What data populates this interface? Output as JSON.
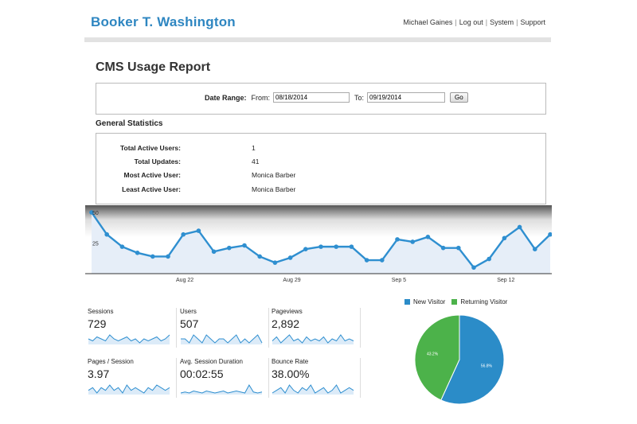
{
  "header": {
    "site_title": "Booker T. Washington",
    "links": [
      "Michael Gaines",
      "Log out",
      "System",
      "Support"
    ]
  },
  "page": {
    "title": "CMS Usage Report"
  },
  "date_range": {
    "label": "Date Range:",
    "from_label": "From:",
    "from_value": "08/18/2014",
    "to_label": "To:",
    "to_value": "09/19/2014",
    "go_label": "Go"
  },
  "general": {
    "title": "General Statistics",
    "rows": [
      {
        "label": "Total Active Users:",
        "value": "1"
      },
      {
        "label": "Total Updates:",
        "value": "41"
      },
      {
        "label": "Most Active User:",
        "value": "Monica Barber"
      },
      {
        "label": "Least Active User:",
        "value": "Monica Barber"
      }
    ]
  },
  "chart_data": [
    {
      "type": "area",
      "series_color": "#2f8fd0",
      "y_ticks": [
        "50",
        "25"
      ],
      "ylim": [
        0,
        50
      ],
      "x_ticks": [
        "Aug 22",
        "Aug 29",
        "Sep 5",
        "Sep 12"
      ],
      "values": [
        50,
        32,
        22,
        17,
        14,
        14,
        32,
        35,
        18,
        21,
        23,
        14,
        9,
        13,
        20,
        22,
        22,
        22,
        11,
        11,
        28,
        26,
        30,
        21,
        21,
        5,
        12,
        29,
        38,
        20,
        32
      ]
    },
    {
      "type": "pie",
      "legend": [
        {
          "label": "New Visitor",
          "color": "#2b8cc8"
        },
        {
          "label": "Returning Visitor",
          "color": "#4cb24a"
        }
      ],
      "slices": [
        {
          "label": "New Visitor",
          "value": 56.8,
          "text": "56.8%",
          "color": "#2b8cc8"
        },
        {
          "label": "Returning Visitor",
          "value": 43.2,
          "text": "43.2%",
          "color": "#4cb24a"
        }
      ]
    }
  ],
  "metrics": [
    {
      "label": "Sessions",
      "value": "729",
      "spark": [
        6,
        5,
        7,
        6,
        5,
        8,
        6,
        5,
        6,
        7,
        5,
        6,
        4,
        6,
        5,
        6,
        7,
        5,
        6,
        8
      ]
    },
    {
      "label": "Users",
      "value": "507",
      "spark": [
        6,
        6,
        5,
        7,
        6,
        5,
        7,
        6,
        5,
        6,
        6,
        5,
        6,
        7,
        5,
        6,
        5,
        6,
        7,
        5
      ]
    },
    {
      "label": "Pageviews",
      "value": "2,892",
      "spark": [
        5,
        7,
        4,
        6,
        8,
        5,
        6,
        4,
        7,
        5,
        6,
        5,
        7,
        4,
        6,
        5,
        8,
        5,
        6,
        5
      ]
    },
    {
      "label": "Pages / Session",
      "value": "3.97",
      "spark": [
        5,
        6,
        4,
        6,
        5,
        7,
        5,
        6,
        4,
        7,
        5,
        6,
        5,
        4,
        6,
        5,
        7,
        6,
        5,
        6
      ]
    },
    {
      "label": "Avg. Session Duration",
      "value": "00:02:55",
      "spark": [
        4,
        5,
        4,
        6,
        5,
        4,
        6,
        5,
        4,
        5,
        6,
        4,
        5,
        6,
        5,
        4,
        12,
        5,
        4,
        5
      ]
    },
    {
      "label": "Bounce Rate",
      "value": "38.00%",
      "spark": [
        5,
        6,
        7,
        5,
        8,
        6,
        5,
        7,
        6,
        8,
        5,
        6,
        7,
        5,
        6,
        8,
        5,
        6,
        7,
        6
      ]
    }
  ]
}
